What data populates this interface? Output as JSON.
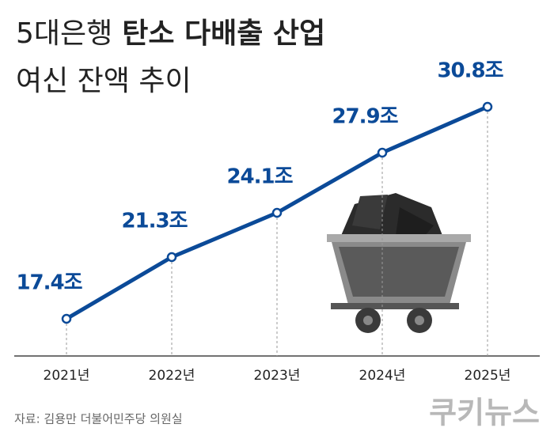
{
  "chart_data": {
    "type": "line",
    "title": {
      "lead": "5대은행",
      "emphasis": "탄소 다배출 산업"
    },
    "subtitle": "여신 잔액 추이",
    "categories": [
      "2021년",
      "2022년",
      "2023년",
      "2024년",
      "2025년"
    ],
    "series": [
      {
        "color": "#0b4a98",
        "values": [
          17.4,
          21.3,
          24.1,
          27.9,
          30.8
        ],
        "value_labels": [
          "17.4조",
          "21.3조",
          "24.1조",
          "27.9조",
          "30.8조"
        ]
      }
    ],
    "source": "자료: 김용만 더불어민주당 의원실",
    "logo": "쿠키뉴스"
  }
}
